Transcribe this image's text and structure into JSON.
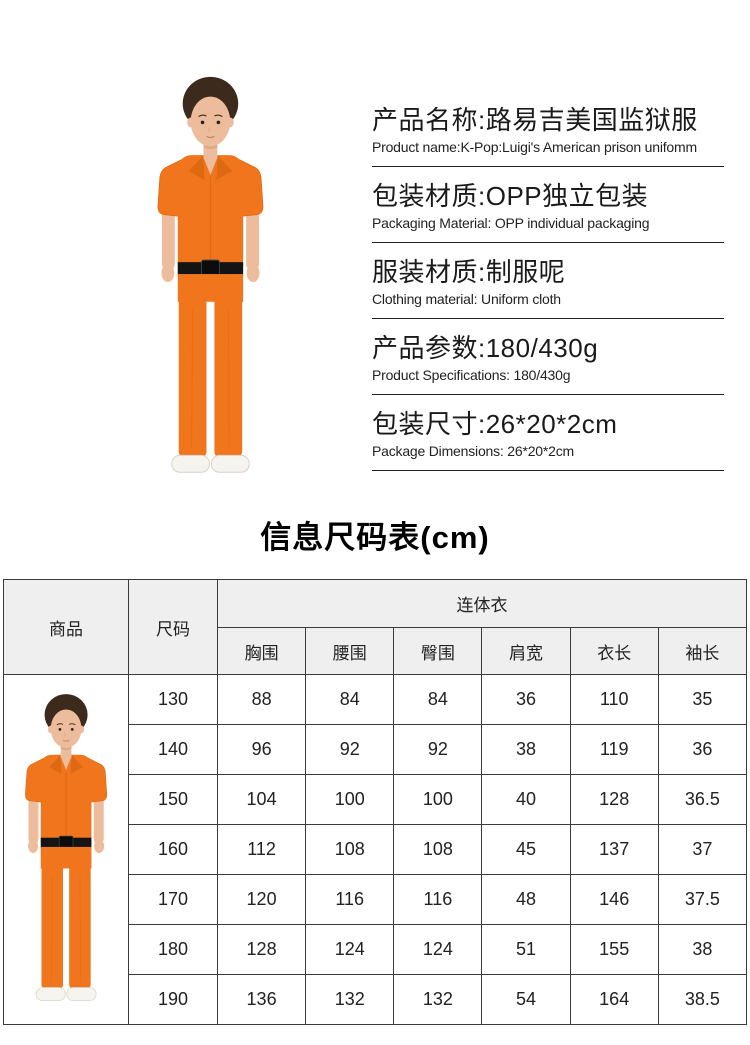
{
  "colors": {
    "jumpsuit-orange": "#f0751c",
    "jumpsuit-shade": "#dd6a12",
    "belt-black": "#141414",
    "table-border": "#3b3b3b",
    "table-header-bg": "#efefef",
    "text-dark": "#1a1a1a"
  },
  "info_sections": [
    {
      "title_cn": "产品名称:路易吉美国监狱服",
      "title_en": "Product name:K-Pop:Luigi's American prison unifomm"
    },
    {
      "title_cn": "包装材质:OPP独立包装",
      "title_en": "Packaging Material: OPP individual packaging"
    },
    {
      "title_cn": "服装材质:制服呢",
      "title_en": "Clothing material: Uniform cloth"
    },
    {
      "title_cn": "产品参数:180/430g",
      "title_en": "Product Specifications: 180/430g"
    },
    {
      "title_cn": "包装尺寸:26*20*2cm",
      "title_en": "Package Dimensions: 26*20*2cm"
    }
  ],
  "size_chart": {
    "title": "信息尺码表(cm)",
    "col_product": "商品",
    "col_size": "尺码",
    "group_header": "连体衣",
    "measure_headers": [
      "胸围",
      "腰围",
      "臀围",
      "肩宽",
      "衣长",
      "袖长"
    ],
    "rows": [
      {
        "size": "130",
        "values": [
          "88",
          "84",
          "84",
          "36",
          "110",
          "35"
        ]
      },
      {
        "size": "140",
        "values": [
          "96",
          "92",
          "92",
          "38",
          "119",
          "36"
        ]
      },
      {
        "size": "150",
        "values": [
          "104",
          "100",
          "100",
          "40",
          "128",
          "36.5"
        ]
      },
      {
        "size": "160",
        "values": [
          "112",
          "108",
          "108",
          "45",
          "137",
          "37"
        ]
      },
      {
        "size": "170",
        "values": [
          "120",
          "116",
          "116",
          "48",
          "146",
          "37.5"
        ]
      },
      {
        "size": "180",
        "values": [
          "128",
          "124",
          "124",
          "51",
          "155",
          "38"
        ]
      },
      {
        "size": "190",
        "values": [
          "136",
          "132",
          "132",
          "54",
          "164",
          "38.5"
        ]
      }
    ]
  }
}
